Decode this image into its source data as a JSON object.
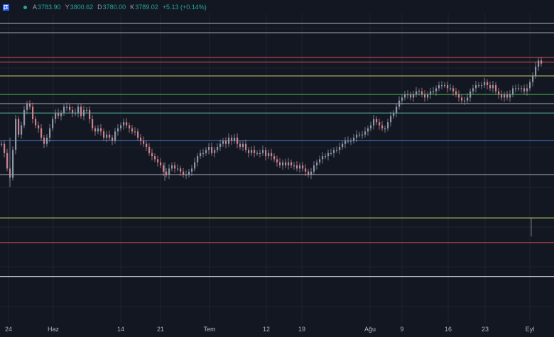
{
  "colors": {
    "background": "#131722",
    "grid": "#1f2330",
    "up": "#8c96a5",
    "down": "#c9828c",
    "accent_green": "#26a69a",
    "axis_text": "#b2b5be",
    "value_green": "#26a69a"
  },
  "header": {
    "symbol_icon": "flag-icon",
    "status_dot_color": "#26a69a",
    "open_label": "A",
    "open_value": "3783.90",
    "high_label": "Y",
    "high_value": "3800.62",
    "low_label": "D",
    "low_value": "3780.00",
    "close_label": "K",
    "close_value": "3789.02",
    "change": "+5.13 (+0.14%)"
  },
  "chart_data": {
    "type": "line",
    "grid": true,
    "x_ticks": [
      "24",
      "Haz",
      "14",
      "21",
      "Tem",
      "12",
      "19",
      "Ağu",
      "9",
      "16",
      "23",
      "Eyl"
    ],
    "horizontal_levels": [
      {
        "value": 0.97,
        "color": "#b2b5be"
      },
      {
        "value": 0.94,
        "color": "#b2b5be"
      },
      {
        "value": 0.86,
        "color": "#e0515a"
      },
      {
        "value": 0.845,
        "color": "#e0515a"
      },
      {
        "value": 0.8,
        "color": "#c8cc6a"
      },
      {
        "value": 0.74,
        "color": "#4caf50"
      },
      {
        "value": 0.71,
        "color": "#b2b5be"
      },
      {
        "value": 0.68,
        "color": "#5bc8a8"
      },
      {
        "value": 0.59,
        "color": "#3f7fd6"
      },
      {
        "value": 0.48,
        "color": "#b2b5be"
      },
      {
        "value": 0.34,
        "color": "#c8e060"
      },
      {
        "value": 0.26,
        "color": "#e0515a"
      },
      {
        "value": 0.15,
        "color": "#ffffff"
      }
    ],
    "price_path": [
      [
        0,
        0.58
      ],
      [
        4,
        0.55
      ],
      [
        8,
        0.5
      ],
      [
        12,
        0.47
      ],
      [
        16,
        0.56
      ],
      [
        20,
        0.66
      ],
      [
        24,
        0.61
      ],
      [
        28,
        0.64
      ],
      [
        32,
        0.69
      ],
      [
        36,
        0.71
      ],
      [
        40,
        0.7
      ],
      [
        44,
        0.66
      ],
      [
        48,
        0.64
      ],
      [
        52,
        0.63
      ],
      [
        56,
        0.6
      ],
      [
        60,
        0.58
      ],
      [
        64,
        0.6
      ],
      [
        68,
        0.63
      ],
      [
        72,
        0.66
      ],
      [
        76,
        0.68
      ],
      [
        80,
        0.67
      ],
      [
        84,
        0.68
      ],
      [
        88,
        0.7
      ],
      [
        92,
        0.7
      ],
      [
        96,
        0.69
      ],
      [
        100,
        0.68
      ],
      [
        104,
        0.68
      ],
      [
        108,
        0.7
      ],
      [
        112,
        0.67
      ],
      [
        116,
        0.69
      ],
      [
        120,
        0.69
      ],
      [
        124,
        0.66
      ],
      [
        128,
        0.63
      ],
      [
        132,
        0.62
      ],
      [
        136,
        0.63
      ],
      [
        140,
        0.62
      ],
      [
        144,
        0.6
      ],
      [
        148,
        0.61
      ],
      [
        152,
        0.6
      ],
      [
        156,
        0.59
      ],
      [
        160,
        0.62
      ],
      [
        164,
        0.63
      ],
      [
        168,
        0.64
      ],
      [
        172,
        0.65
      ],
      [
        176,
        0.64
      ],
      [
        180,
        0.63
      ],
      [
        184,
        0.62
      ],
      [
        188,
        0.62
      ],
      [
        192,
        0.6
      ],
      [
        196,
        0.59
      ],
      [
        200,
        0.58
      ],
      [
        204,
        0.57
      ],
      [
        208,
        0.55
      ],
      [
        212,
        0.54
      ],
      [
        216,
        0.53
      ],
      [
        220,
        0.52
      ],
      [
        224,
        0.51
      ],
      [
        228,
        0.49
      ],
      [
        232,
        0.48
      ],
      [
        236,
        0.5
      ],
      [
        240,
        0.51
      ],
      [
        244,
        0.5
      ],
      [
        248,
        0.5
      ],
      [
        252,
        0.49
      ],
      [
        256,
        0.48
      ],
      [
        260,
        0.48
      ],
      [
        264,
        0.49
      ],
      [
        268,
        0.5
      ],
      [
        272,
        0.52
      ],
      [
        276,
        0.54
      ],
      [
        280,
        0.55
      ],
      [
        284,
        0.55
      ],
      [
        288,
        0.56
      ],
      [
        292,
        0.57
      ],
      [
        296,
        0.55
      ],
      [
        300,
        0.56
      ],
      [
        304,
        0.57
      ],
      [
        308,
        0.58
      ],
      [
        312,
        0.59
      ],
      [
        316,
        0.58
      ],
      [
        320,
        0.6
      ],
      [
        324,
        0.59
      ],
      [
        328,
        0.6
      ],
      [
        332,
        0.58
      ],
      [
        336,
        0.57
      ],
      [
        340,
        0.58
      ],
      [
        344,
        0.56
      ],
      [
        348,
        0.55
      ],
      [
        352,
        0.56
      ],
      [
        356,
        0.55
      ],
      [
        360,
        0.55
      ],
      [
        364,
        0.55
      ],
      [
        368,
        0.56
      ],
      [
        372,
        0.54
      ],
      [
        376,
        0.55
      ],
      [
        380,
        0.54
      ],
      [
        384,
        0.53
      ],
      [
        388,
        0.52
      ],
      [
        392,
        0.51
      ],
      [
        396,
        0.52
      ],
      [
        400,
        0.51
      ],
      [
        404,
        0.52
      ],
      [
        408,
        0.51
      ],
      [
        412,
        0.51
      ],
      [
        416,
        0.5
      ],
      [
        420,
        0.51
      ],
      [
        424,
        0.5
      ],
      [
        428,
        0.49
      ],
      [
        432,
        0.48
      ],
      [
        436,
        0.49
      ],
      [
        440,
        0.51
      ],
      [
        444,
        0.52
      ],
      [
        448,
        0.53
      ],
      [
        452,
        0.54
      ],
      [
        456,
        0.54
      ],
      [
        460,
        0.55
      ],
      [
        464,
        0.55
      ],
      [
        468,
        0.56
      ],
      [
        472,
        0.56
      ],
      [
        476,
        0.57
      ],
      [
        480,
        0.58
      ],
      [
        484,
        0.59
      ],
      [
        488,
        0.59
      ],
      [
        492,
        0.59
      ],
      [
        496,
        0.6
      ],
      [
        500,
        0.61
      ],
      [
        504,
        0.61
      ],
      [
        508,
        0.61
      ],
      [
        512,
        0.62
      ],
      [
        516,
        0.63
      ],
      [
        520,
        0.64
      ],
      [
        524,
        0.66
      ],
      [
        528,
        0.65
      ],
      [
        532,
        0.64
      ],
      [
        536,
        0.63
      ],
      [
        540,
        0.63
      ],
      [
        544,
        0.65
      ],
      [
        548,
        0.67
      ],
      [
        552,
        0.68
      ],
      [
        556,
        0.7
      ],
      [
        560,
        0.72
      ],
      [
        564,
        0.73
      ],
      [
        568,
        0.74
      ],
      [
        572,
        0.74
      ],
      [
        576,
        0.73
      ],
      [
        580,
        0.74
      ],
      [
        584,
        0.75
      ],
      [
        588,
        0.75
      ],
      [
        592,
        0.74
      ],
      [
        596,
        0.73
      ],
      [
        600,
        0.74
      ],
      [
        604,
        0.75
      ],
      [
        608,
        0.75
      ],
      [
        612,
        0.76
      ],
      [
        616,
        0.77
      ],
      [
        620,
        0.77
      ],
      [
        624,
        0.77
      ],
      [
        628,
        0.76
      ],
      [
        632,
        0.76
      ],
      [
        636,
        0.75
      ],
      [
        640,
        0.74
      ],
      [
        644,
        0.73
      ],
      [
        648,
        0.72
      ],
      [
        652,
        0.72
      ],
      [
        656,
        0.73
      ],
      [
        660,
        0.75
      ],
      [
        664,
        0.76
      ],
      [
        668,
        0.77
      ],
      [
        672,
        0.77
      ],
      [
        676,
        0.77
      ],
      [
        680,
        0.78
      ],
      [
        684,
        0.77
      ],
      [
        688,
        0.76
      ],
      [
        692,
        0.77
      ],
      [
        696,
        0.75
      ],
      [
        700,
        0.74
      ],
      [
        704,
        0.73
      ],
      [
        708,
        0.74
      ],
      [
        712,
        0.73
      ],
      [
        716,
        0.74
      ],
      [
        720,
        0.76
      ],
      [
        724,
        0.76
      ],
      [
        728,
        0.76
      ],
      [
        732,
        0.76
      ],
      [
        736,
        0.75
      ],
      [
        740,
        0.76
      ],
      [
        744,
        0.78
      ],
      [
        748,
        0.8
      ],
      [
        752,
        0.83
      ],
      [
        756,
        0.85
      ],
      [
        760,
        0.84
      ]
    ]
  }
}
